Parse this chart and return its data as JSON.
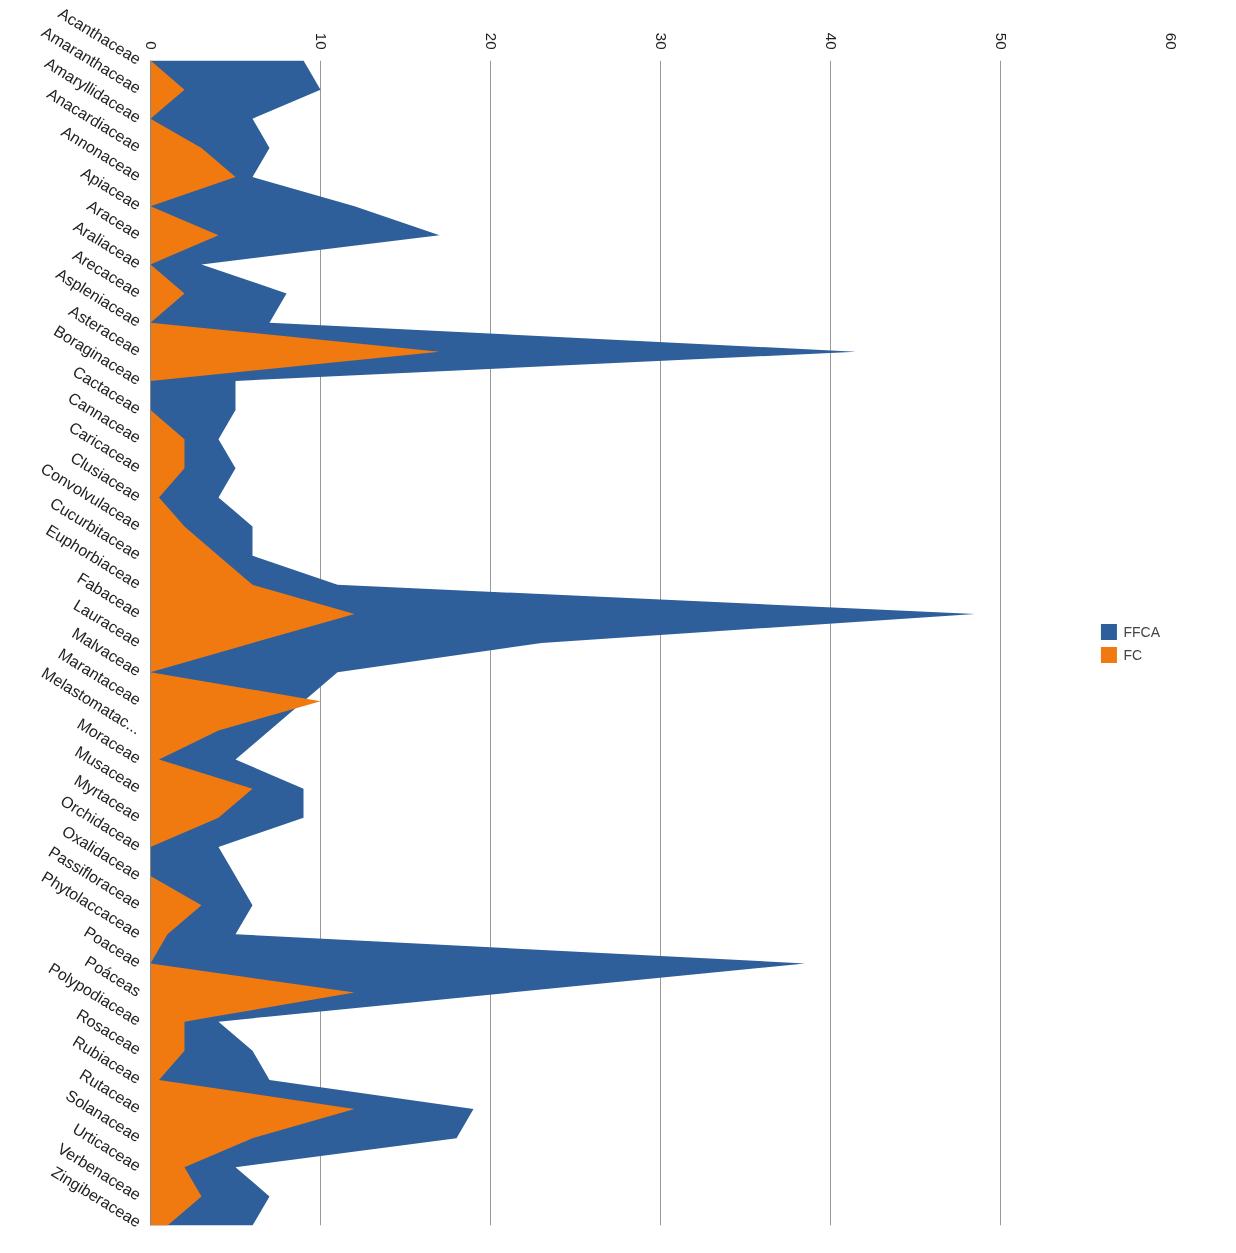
{
  "chart_data": {
    "type": "area",
    "orientation": "horizontal",
    "categories": [
      "Acanthaceae",
      "Amaranthaceae",
      "Amaryllidaceae",
      "Anacardiaceae",
      "Annonaceae",
      "Apiaceae",
      "Araceae",
      "Araliaceae",
      "Arecaceae",
      "Aspleniaceae",
      "Asteraceae",
      "Boraginaceae",
      "Cactaceae",
      "Cannaceae",
      "Caricaceae",
      "Clusiaceae",
      "Convolvulaceae",
      "Cucurbitaceae",
      "Euphorbiaceae",
      "Fabaceae",
      "Lauraceae",
      "Malvaceae",
      "Marantaceae",
      "Melastomatac...",
      "Moraceae",
      "Musaceae",
      "Myrtaceae",
      "Orchidaceae",
      "Oxalidaceae",
      "Passifloraceae",
      "Phytolaccaceae",
      "Poaceae",
      "Poáceas",
      "Polypodiaceae",
      "Rosaceae",
      "Rubiaceae",
      "Rutaceae",
      "Solanaceae",
      "Urticaceae",
      "Verbenaceae",
      "Zingiberaceae"
    ],
    "series": [
      {
        "name": "FFCA",
        "color": "#2e5f9a",
        "values": [
          9,
          10,
          6,
          7,
          6,
          12,
          17,
          3,
          8,
          7,
          41.5,
          5,
          5,
          4,
          5,
          4,
          6,
          6,
          11,
          48.5,
          23,
          11,
          null,
          null,
          5,
          9,
          9,
          4,
          5,
          6,
          5,
          38.5,
          null,
          4,
          6,
          7,
          19,
          18,
          5,
          7,
          6
        ]
      },
      {
        "name": "FC",
        "color": "#f07910",
        "values": [
          0,
          2,
          0,
          3,
          5,
          0,
          4,
          0,
          2,
          0,
          17,
          0,
          0,
          2,
          2,
          0.5,
          2,
          4,
          6,
          12,
          6,
          0,
          10,
          4,
          0.5,
          6,
          4,
          0,
          0,
          3,
          1,
          0,
          12,
          2,
          2,
          0.5,
          12,
          6,
          2,
          3,
          1
        ]
      }
    ],
    "xlim": [
      0,
      60
    ],
    "xticks": [
      0,
      10,
      20,
      30,
      40,
      50,
      60
    ],
    "grid": "x",
    "legend": "right"
  }
}
